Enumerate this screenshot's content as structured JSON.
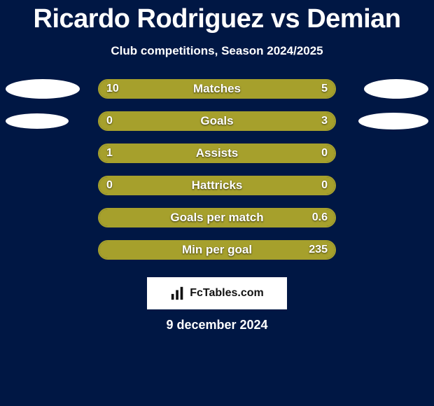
{
  "title": "Ricardo Rodriguez vs Demian",
  "subtitle": "Club competitions, Season 2024/2025",
  "date": "9 december 2024",
  "badge": {
    "text": "FcTables.com"
  },
  "colors": {
    "background": "#001744",
    "border": "#a6a02c",
    "left_fill": "#a6a02c",
    "right_fill": "#a6a02c",
    "text": "#ffffff",
    "badge_bg": "#ffffff",
    "badge_text": "#111111"
  },
  "ellipse_sizes": {
    "row0": {
      "left_w": 106,
      "left_h": 28,
      "right_w": 92,
      "right_h": 28
    },
    "row1": {
      "left_w": 90,
      "left_h": 22,
      "right_w": 100,
      "right_h": 24
    }
  },
  "stats": [
    {
      "label": "Matches",
      "left_display": "10",
      "right_display": "5",
      "left_pct": 66,
      "right_pct": 34,
      "show_ellipses": true,
      "ellipse_key": "row0"
    },
    {
      "label": "Goals",
      "left_display": "0",
      "right_display": "3",
      "left_pct": 17,
      "right_pct": 83,
      "show_ellipses": true,
      "ellipse_key": "row1"
    },
    {
      "label": "Assists",
      "left_display": "1",
      "right_display": "0",
      "left_pct": 78,
      "right_pct": 22,
      "show_ellipses": false
    },
    {
      "label": "Hattricks",
      "left_display": "0",
      "right_display": "0",
      "left_pct": 50,
      "right_pct": 50,
      "show_ellipses": false
    },
    {
      "label": "Goals per match",
      "left_display": "",
      "right_display": "0.6",
      "left_pct": 100,
      "right_pct": 0,
      "show_ellipses": false
    },
    {
      "label": "Min per goal",
      "left_display": "",
      "right_display": "235",
      "left_pct": 100,
      "right_pct": 0,
      "show_ellipses": false
    }
  ]
}
